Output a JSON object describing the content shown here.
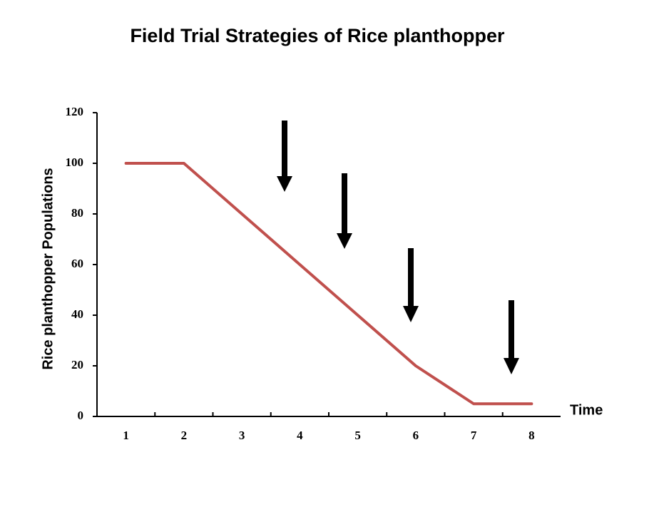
{
  "chart_data": {
    "type": "line",
    "title": "Field Trial Strategies of Rice planthopper",
    "x_label": "Time",
    "y_label": "Rice planthopper  Populations",
    "categories": [
      "1",
      "2",
      "3",
      "4",
      "5",
      "6",
      "7",
      "8"
    ],
    "values": [
      100,
      100,
      80,
      60,
      40,
      20,
      5,
      5
    ],
    "color": "#c0504d",
    "ylim": [
      0,
      120
    ],
    "yticks": [
      0,
      20,
      40,
      60,
      80,
      100,
      120
    ],
    "grid": false
  }
}
